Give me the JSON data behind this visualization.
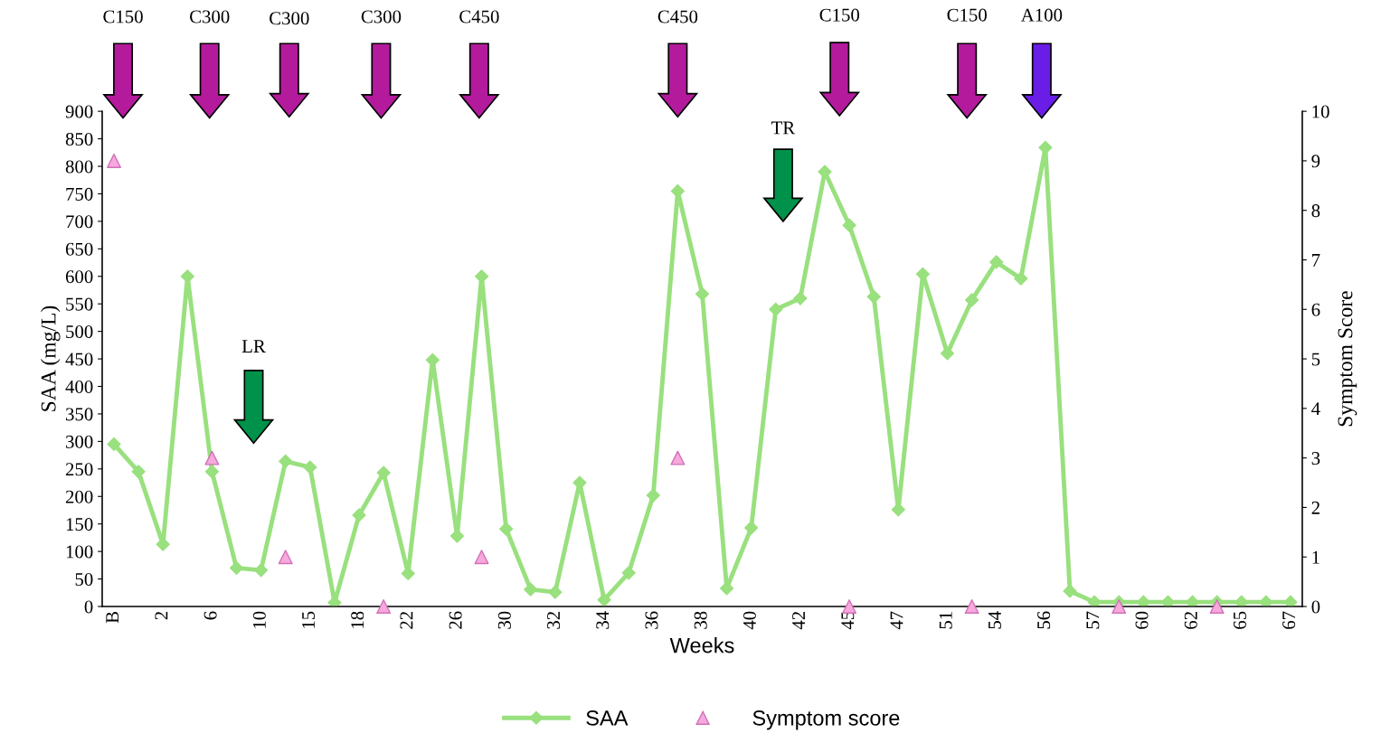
{
  "chart_data": {
    "type": "line",
    "xlabel": "Weeks",
    "ylabel": "SAA (mg/L)",
    "y2label": "Symptom Score",
    "categories": [
      "B",
      null,
      "2",
      null,
      "6",
      null,
      "10",
      null,
      "15",
      null,
      "18",
      null,
      "22",
      null,
      "26",
      null,
      "30",
      null,
      "32",
      null,
      "34",
      null,
      "36",
      null,
      "38",
      null,
      "40",
      null,
      "42",
      null,
      "45",
      null,
      "47",
      null,
      "51",
      null,
      "54",
      null,
      "56",
      null,
      "57",
      null,
      "60",
      null,
      "62",
      null,
      "65",
      null,
      "67"
    ],
    "series": [
      {
        "name": "SAA",
        "marker": "diamond",
        "color": "#99e07e",
        "values": [
          295,
          245,
          113,
          600,
          245,
          70,
          66,
          264,
          253,
          7,
          166,
          243,
          60,
          448,
          128,
          600,
          141,
          31,
          26,
          225,
          12,
          61,
          202,
          755,
          568,
          33,
          143,
          540,
          560,
          790,
          693,
          563,
          176,
          604,
          460,
          557,
          626,
          596,
          834,
          28,
          8,
          8,
          8,
          8,
          8,
          8,
          8,
          8,
          8
        ]
      },
      {
        "name": "Symptom score",
        "type": "scatter",
        "marker": "triangle",
        "axis": "y2",
        "color": "#f7a8dc",
        "values": [
          9,
          null,
          null,
          null,
          3,
          null,
          null,
          1,
          null,
          null,
          null,
          0,
          null,
          null,
          null,
          1,
          null,
          null,
          null,
          null,
          null,
          null,
          null,
          3,
          null,
          null,
          null,
          null,
          null,
          null,
          0,
          null,
          null,
          null,
          null,
          0,
          null,
          null,
          null,
          null,
          null,
          0,
          null,
          null,
          null,
          0,
          null,
          null,
          null
        ]
      }
    ],
    "ylim": [
      0,
      900
    ],
    "yticks": [
      0,
      50,
      100,
      150,
      200,
      250,
      300,
      350,
      400,
      450,
      500,
      550,
      600,
      650,
      700,
      750,
      800,
      850,
      900
    ],
    "y2lim": [
      0,
      10
    ],
    "y2ticks": [
      0,
      1,
      2,
      3,
      4,
      5,
      6,
      7,
      8,
      9,
      10
    ],
    "annotations": [
      "C150",
      "C300",
      "C300",
      "C300",
      "C450",
      "C450",
      "C150",
      "C150",
      "A100",
      "LR",
      "TR"
    ],
    "legend": "bottom",
    "grid": false
  }
}
